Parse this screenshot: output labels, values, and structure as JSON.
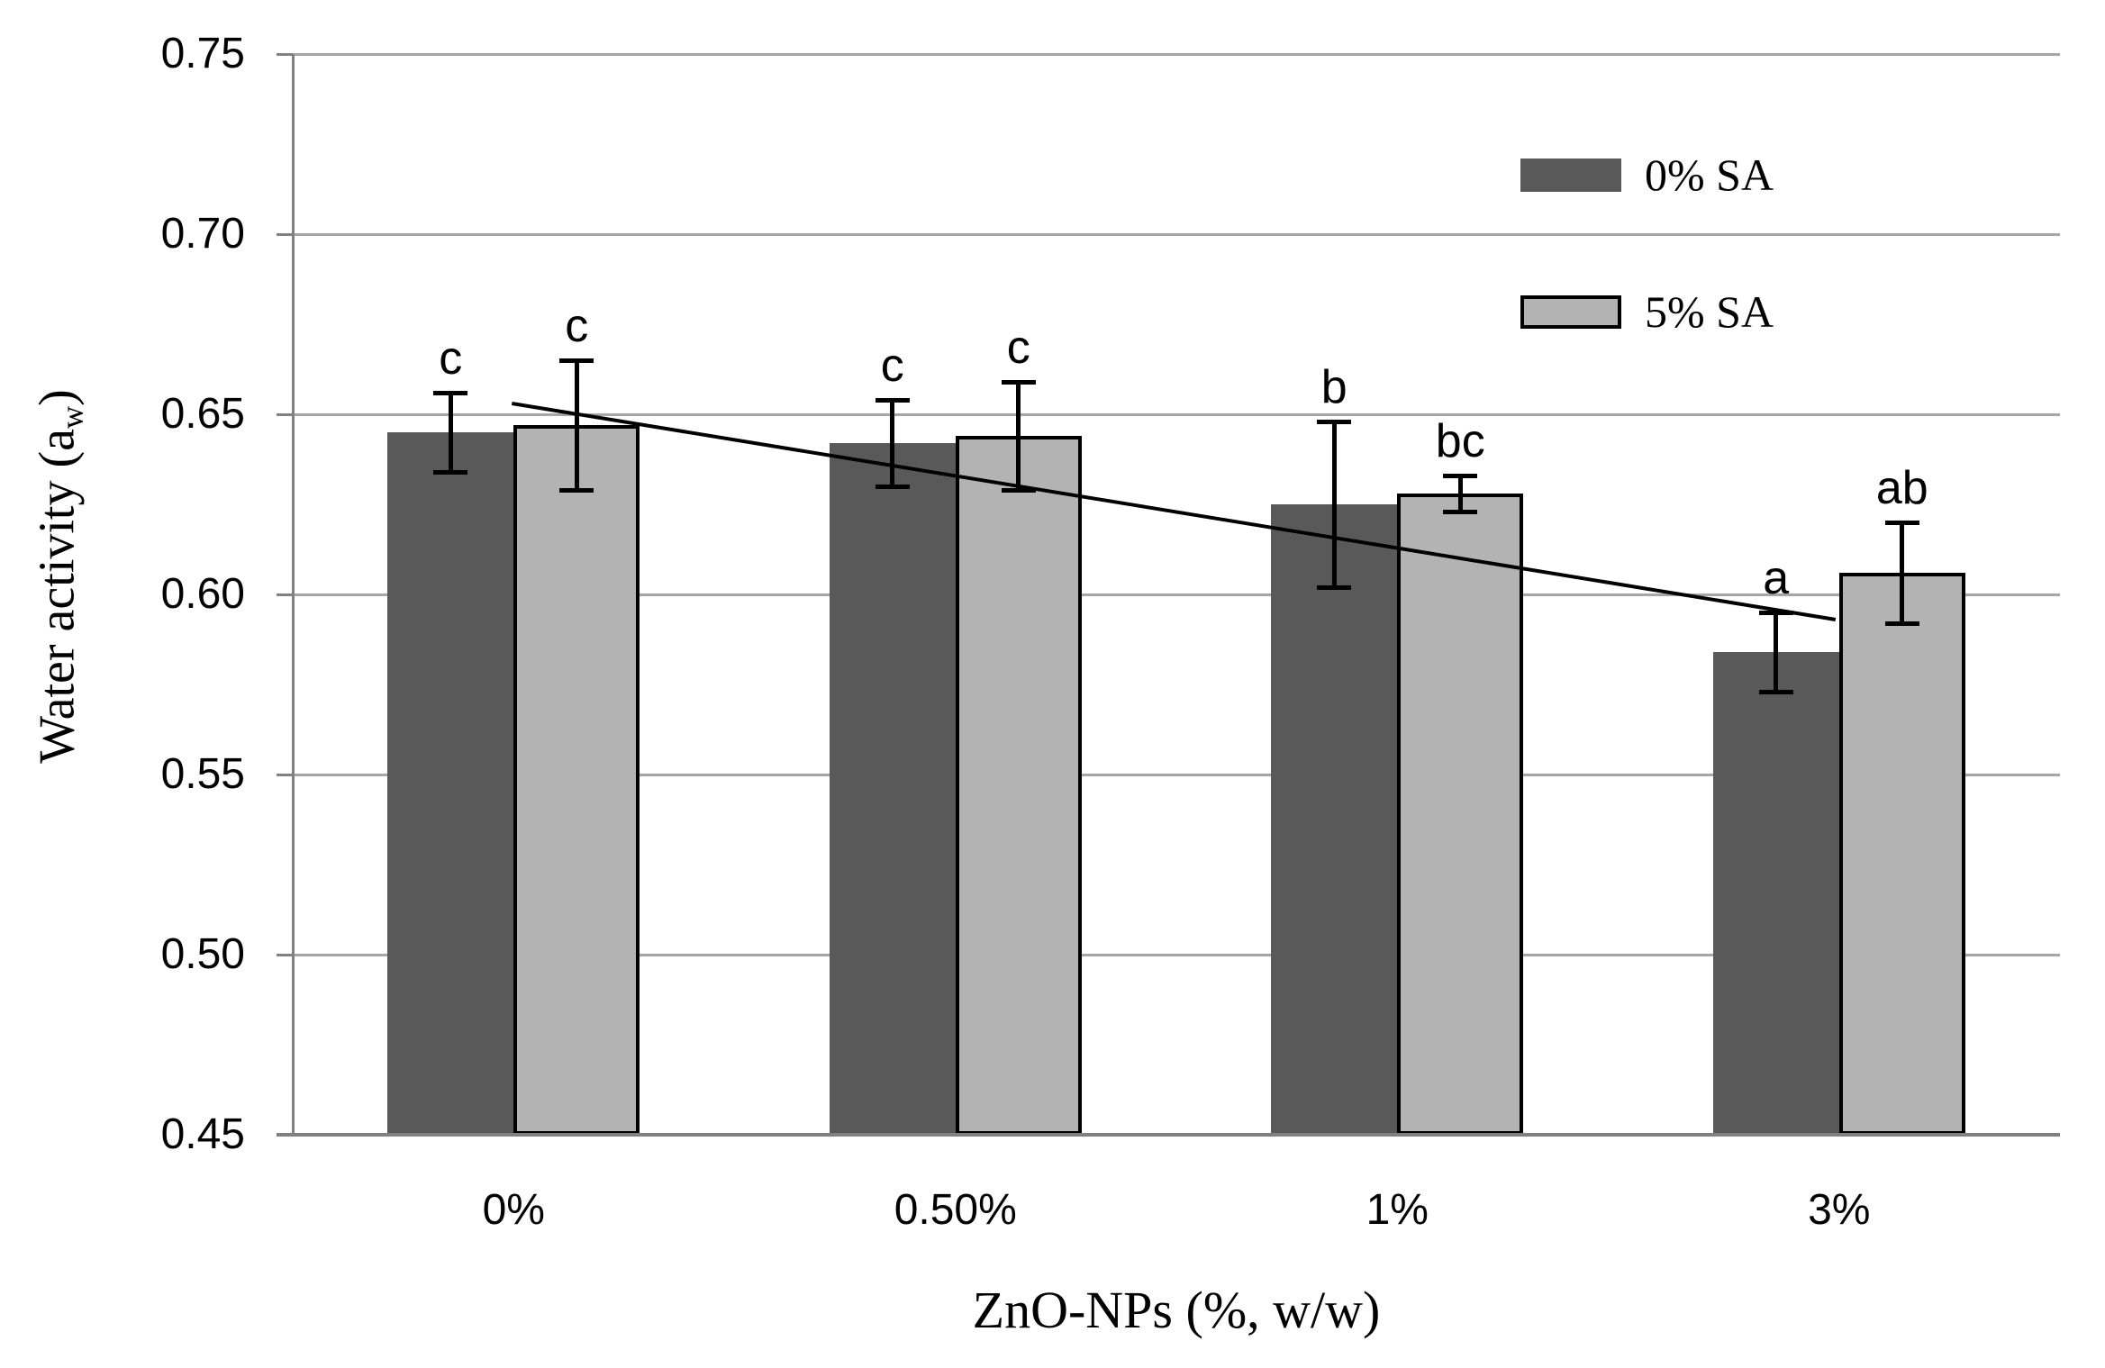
{
  "chart_data": {
    "type": "bar",
    "title": "",
    "xlabel": "ZnO-NPs (%, w/w)",
    "ylabel": "Water activity (aw)",
    "ylabel_parts": {
      "main": "Water activity (a",
      "sub": "w",
      "end": ")"
    },
    "categories": [
      "0%",
      "0.50%",
      "1%",
      "3%"
    ],
    "series": [
      {
        "name": "0% SA",
        "color": "#595959",
        "border_color": null,
        "values": [
          0.645,
          0.642,
          0.625,
          0.584
        ],
        "errors": [
          0.011,
          0.012,
          0.023,
          0.011
        ],
        "sig_letters": [
          "c",
          "c",
          "b",
          "a"
        ]
      },
      {
        "name": "5% SA",
        "color": "#b3b3b3",
        "border_color": "#000000",
        "values": [
          0.647,
          0.644,
          0.628,
          0.606
        ],
        "errors": [
          0.018,
          0.015,
          0.005,
          0.014
        ],
        "sig_letters": [
          "c",
          "c",
          "bc",
          "ab"
        ]
      }
    ],
    "ylim": [
      0.45,
      0.75
    ],
    "yticks": [
      0.45,
      0.5,
      0.55,
      0.6,
      0.65,
      0.7,
      0.75
    ],
    "ytick_labels": [
      "0.45",
      "0.50",
      "0.55",
      "0.60",
      "0.65",
      "0.70",
      "0.75"
    ],
    "grid": true,
    "legend_position": "upper-right-inside",
    "trendline": {
      "x1_frac": 0.124,
      "v1": 0.653,
      "x2_frac": 0.873,
      "v2": 0.593,
      "color": "#000000"
    },
    "colors": {
      "background": "#ffffff",
      "gridline": "#a6a6a6",
      "axis": "#808080",
      "error_bar": "#000000",
      "text": "#000000"
    }
  }
}
